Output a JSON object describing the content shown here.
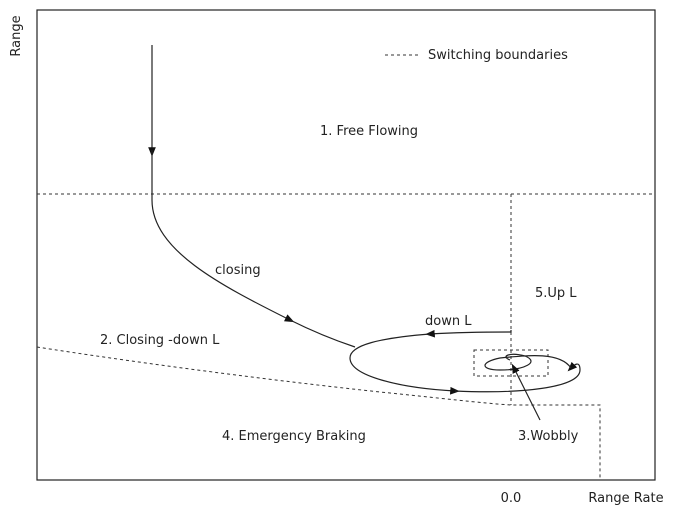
{
  "axes": {
    "y_label": "Range",
    "x_label": "Range Rate",
    "x_origin_label": "0.0"
  },
  "legend": {
    "label": "Switching boundaries"
  },
  "regions": [
    {
      "label": "1. Free Flowing"
    },
    {
      "label": "2. Closing -down L"
    },
    {
      "label": "3.Wobbly"
    },
    {
      "label": "4. Emergency Braking"
    },
    {
      "label": "5.Up L"
    }
  ],
  "trajectory_labels": {
    "closing": "closing",
    "down": "down L"
  }
}
